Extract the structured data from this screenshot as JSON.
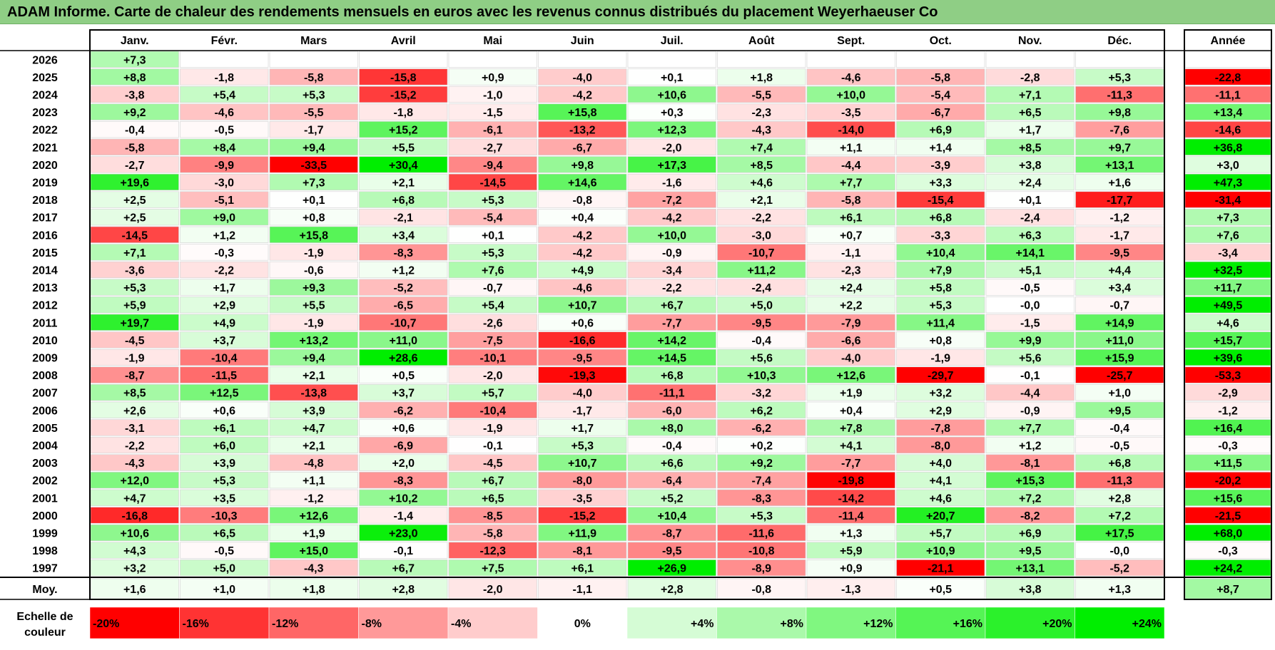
{
  "title": "ADAM Informe. Carte de chaleur des rendements mensuels en euros avec les revenus connus distribués du placement Weyerhaeuser Co",
  "chart_data": {
    "type": "heatmap",
    "title": "ADAM Informe. Carte de chaleur des rendements mensuels en euros avec les revenus connus distribués du placement Weyerhaeuser Co",
    "months": [
      "Janv.",
      "Févr.",
      "Mars",
      "Avril",
      "Mai",
      "Juin",
      "Juil.",
      "Août",
      "Sept.",
      "Oct.",
      "Nov.",
      "Déc."
    ],
    "annual_label": "Année",
    "rows": [
      {
        "year": "2026",
        "values": [
          "+7,3",
          null,
          null,
          null,
          null,
          null,
          null,
          null,
          null,
          null,
          null,
          null
        ],
        "annual": null
      },
      {
        "year": "2025",
        "values": [
          "+8,8",
          "-1,8",
          "-5,8",
          "-15,8",
          "+0,9",
          "-4,0",
          "+0,1",
          "+1,8",
          "-4,6",
          "-5,8",
          "-2,8",
          "+5,3"
        ],
        "annual": "-22,8"
      },
      {
        "year": "2024",
        "values": [
          "-3,8",
          "+5,4",
          "+5,3",
          "-15,2",
          "-1,0",
          "-4,2",
          "+10,6",
          "-5,5",
          "+10,0",
          "-5,4",
          "+7,1",
          "-11,3"
        ],
        "annual": "-11,1"
      },
      {
        "year": "2023",
        "values": [
          "+9,2",
          "-4,6",
          "-5,5",
          "-1,8",
          "-1,5",
          "+15,8",
          "+0,3",
          "-2,3",
          "-3,5",
          "-6,7",
          "+6,5",
          "+9,8"
        ],
        "annual": "+13,4"
      },
      {
        "year": "2022",
        "values": [
          "-0,4",
          "-0,5",
          "-1,7",
          "+15,2",
          "-6,1",
          "-13,2",
          "+12,3",
          "-4,3",
          "-14,0",
          "+6,9",
          "+1,7",
          "-7,6"
        ],
        "annual": "-14,6"
      },
      {
        "year": "2021",
        "values": [
          "-5,8",
          "+8,4",
          "+9,4",
          "+5,5",
          "-2,7",
          "-6,7",
          "-2,0",
          "+7,4",
          "+1,1",
          "+1,4",
          "+8,5",
          "+9,7"
        ],
        "annual": "+36,8"
      },
      {
        "year": "2020",
        "values": [
          "-2,7",
          "-9,9",
          "-33,5",
          "+30,4",
          "-9,4",
          "+9,8",
          "+17,3",
          "+8,5",
          "-4,4",
          "-3,9",
          "+3,8",
          "+13,1"
        ],
        "annual": "+3,0"
      },
      {
        "year": "2019",
        "values": [
          "+19,6",
          "-3,0",
          "+7,3",
          "+2,1",
          "-14,5",
          "+14,6",
          "-1,6",
          "+4,6",
          "+7,7",
          "+3,3",
          "+2,4",
          "+1,6"
        ],
        "annual": "+47,3"
      },
      {
        "year": "2018",
        "values": [
          "+2,5",
          "-5,1",
          "+0,1",
          "+6,8",
          "+5,3",
          "-0,8",
          "-7,2",
          "+2,1",
          "-5,8",
          "-15,4",
          "+0,1",
          "-17,7"
        ],
        "annual": "-31,4"
      },
      {
        "year": "2017",
        "values": [
          "+2,5",
          "+9,0",
          "+0,8",
          "-2,1",
          "-5,4",
          "+0,4",
          "-4,2",
          "-2,2",
          "+6,1",
          "+6,8",
          "-2,4",
          "-1,2"
        ],
        "annual": "+7,3"
      },
      {
        "year": "2016",
        "values": [
          "-14,5",
          "+1,2",
          "+15,8",
          "+3,4",
          "+0,1",
          "-4,2",
          "+10,0",
          "-3,0",
          "+0,7",
          "-3,3",
          "+6,3",
          "-1,7"
        ],
        "annual": "+7,6"
      },
      {
        "year": "2015",
        "values": [
          "+7,1",
          "-0,3",
          "-1,9",
          "-8,3",
          "+5,3",
          "-4,2",
          "-0,9",
          "-10,7",
          "-1,1",
          "+10,4",
          "+14,1",
          "-9,5"
        ],
        "annual": "-3,4"
      },
      {
        "year": "2014",
        "values": [
          "-3,6",
          "-2,2",
          "-0,6",
          "+1,2",
          "+7,6",
          "+4,9",
          "-3,4",
          "+11,2",
          "-2,3",
          "+7,9",
          "+5,1",
          "+4,4"
        ],
        "annual": "+32,5"
      },
      {
        "year": "2013",
        "values": [
          "+5,3",
          "+1,7",
          "+9,3",
          "-5,2",
          "-0,7",
          "-4,6",
          "-2,2",
          "-2,4",
          "+2,4",
          "+5,8",
          "-0,5",
          "+3,4"
        ],
        "annual": "+11,7"
      },
      {
        "year": "2012",
        "values": [
          "+5,9",
          "+2,9",
          "+5,5",
          "-6,5",
          "+5,4",
          "+10,7",
          "+6,7",
          "+5,0",
          "+2,2",
          "+5,3",
          "-0,0",
          "-0,7"
        ],
        "annual": "+49,5"
      },
      {
        "year": "2011",
        "values": [
          "+19,7",
          "+4,9",
          "-1,9",
          "-10,7",
          "-2,6",
          "+0,6",
          "-7,7",
          "-9,5",
          "-7,9",
          "+11,4",
          "-1,5",
          "+14,9"
        ],
        "annual": "+4,6"
      },
      {
        "year": "2010",
        "values": [
          "-4,5",
          "+3,7",
          "+13,2",
          "+11,0",
          "-7,5",
          "-16,6",
          "+14,2",
          "-0,4",
          "-6,6",
          "+0,8",
          "+9,9",
          "+11,0"
        ],
        "annual": "+15,7"
      },
      {
        "year": "2009",
        "values": [
          "-1,9",
          "-10,4",
          "+9,4",
          "+28,6",
          "-10,1",
          "-9,5",
          "+14,5",
          "+5,6",
          "-4,0",
          "-1,9",
          "+5,6",
          "+15,9"
        ],
        "annual": "+39,6"
      },
      {
        "year": "2008",
        "values": [
          "-8,7",
          "-11,5",
          "+2,1",
          "+0,5",
          "-2,0",
          "-19,3",
          "+6,8",
          "+10,3",
          "+12,6",
          "-29,7",
          "-0,1",
          "-25,7"
        ],
        "annual": "-53,3"
      },
      {
        "year": "2007",
        "values": [
          "+8,5",
          "+12,5",
          "-13,8",
          "+3,7",
          "+5,7",
          "-4,0",
          "-11,1",
          "-3,2",
          "+1,9",
          "+3,2",
          "-4,4",
          "+1,0"
        ],
        "annual": "-2,9"
      },
      {
        "year": "2006",
        "values": [
          "+2,6",
          "+0,6",
          "+3,9",
          "-6,2",
          "-10,4",
          "-1,7",
          "-6,0",
          "+6,2",
          "+0,4",
          "+2,9",
          "-0,9",
          "+9,5"
        ],
        "annual": "-1,2"
      },
      {
        "year": "2005",
        "values": [
          "-3,1",
          "+6,1",
          "+4,7",
          "+0,6",
          "-1,9",
          "+1,7",
          "+8,0",
          "-6,2",
          "+7,8",
          "-7,8",
          "+7,7",
          "-0,4"
        ],
        "annual": "+16,4"
      },
      {
        "year": "2004",
        "values": [
          "-2,2",
          "+6,0",
          "+2,1",
          "-6,9",
          "-0,1",
          "+5,3",
          "-0,4",
          "+0,2",
          "+4,1",
          "-8,0",
          "+1,2",
          "-0,5"
        ],
        "annual": "-0,3"
      },
      {
        "year": "2003",
        "values": [
          "-4,3",
          "+3,9",
          "-4,8",
          "+2,0",
          "-4,5",
          "+10,7",
          "+6,6",
          "+9,2",
          "-7,7",
          "+4,0",
          "-8,1",
          "+6,8"
        ],
        "annual": "+11,5"
      },
      {
        "year": "2002",
        "values": [
          "+12,0",
          "+5,3",
          "+1,1",
          "-8,3",
          "+6,7",
          "-8,0",
          "-6,4",
          "-7,4",
          "-19,8",
          "+4,1",
          "+15,3",
          "-11,3"
        ],
        "annual": "-20,2"
      },
      {
        "year": "2001",
        "values": [
          "+4,7",
          "+3,5",
          "-1,2",
          "+10,2",
          "+6,5",
          "-3,5",
          "+5,2",
          "-8,3",
          "-14,2",
          "+4,6",
          "+7,2",
          "+2,8"
        ],
        "annual": "+15,6"
      },
      {
        "year": "2000",
        "values": [
          "-16,8",
          "-10,3",
          "+12,6",
          "-1,4",
          "-8,5",
          "-15,2",
          "+10,4",
          "+5,3",
          "-11,4",
          "+20,7",
          "-8,2",
          "+7,2"
        ],
        "annual": "-21,5"
      },
      {
        "year": "1999",
        "values": [
          "+10,6",
          "+6,5",
          "+1,9",
          "+23,0",
          "-5,8",
          "+11,9",
          "-8,7",
          "-11,6",
          "+1,3",
          "+5,7",
          "+6,9",
          "+17,5"
        ],
        "annual": "+68,0"
      },
      {
        "year": "1998",
        "values": [
          "+4,3",
          "-0,5",
          "+15,0",
          "-0,1",
          "-12,3",
          "-8,1",
          "-9,5",
          "-10,8",
          "+5,9",
          "+10,9",
          "+9,5",
          "-0,0"
        ],
        "annual": "-0,3"
      },
      {
        "year": "1997",
        "values": [
          "+3,2",
          "+5,0",
          "-4,3",
          "+6,7",
          "+7,5",
          "+6,1",
          "+26,9",
          "-8,9",
          "+0,9",
          "-21,1",
          "+13,1",
          "-5,2"
        ],
        "annual": "+24,2"
      }
    ],
    "average": {
      "label": "Moy.",
      "values": [
        "+1,6",
        "+1,0",
        "+1,8",
        "+2,8",
        "-2,0",
        "-1,1",
        "+2,8",
        "-0,8",
        "-1,3",
        "+0,5",
        "+3,8",
        "+1,3"
      ],
      "annual": "+8,7"
    },
    "color_scale": {
      "label_line1": "Echelle de",
      "label_line2": "couleur",
      "stops": [
        {
          "label": "-20%",
          "value": -20
        },
        {
          "label": "-16%",
          "value": -16
        },
        {
          "label": "-12%",
          "value": -12
        },
        {
          "label": "-8%",
          "value": -8
        },
        {
          "label": "-4%",
          "value": -4
        },
        {
          "label": "0%",
          "value": 0
        },
        {
          "label": "+4%",
          "value": 4
        },
        {
          "label": "+8%",
          "value": 8
        },
        {
          "label": "+12%",
          "value": 12
        },
        {
          "label": "+16%",
          "value": 16
        },
        {
          "label": "+20%",
          "value": 20
        },
        {
          "label": "+24%",
          "value": 24
        }
      ]
    },
    "colors": {
      "title_bar": "#8fce85",
      "negative_max": "#ff0000",
      "positive_max": "#00ee00",
      "neutral": "#ffffff"
    }
  }
}
